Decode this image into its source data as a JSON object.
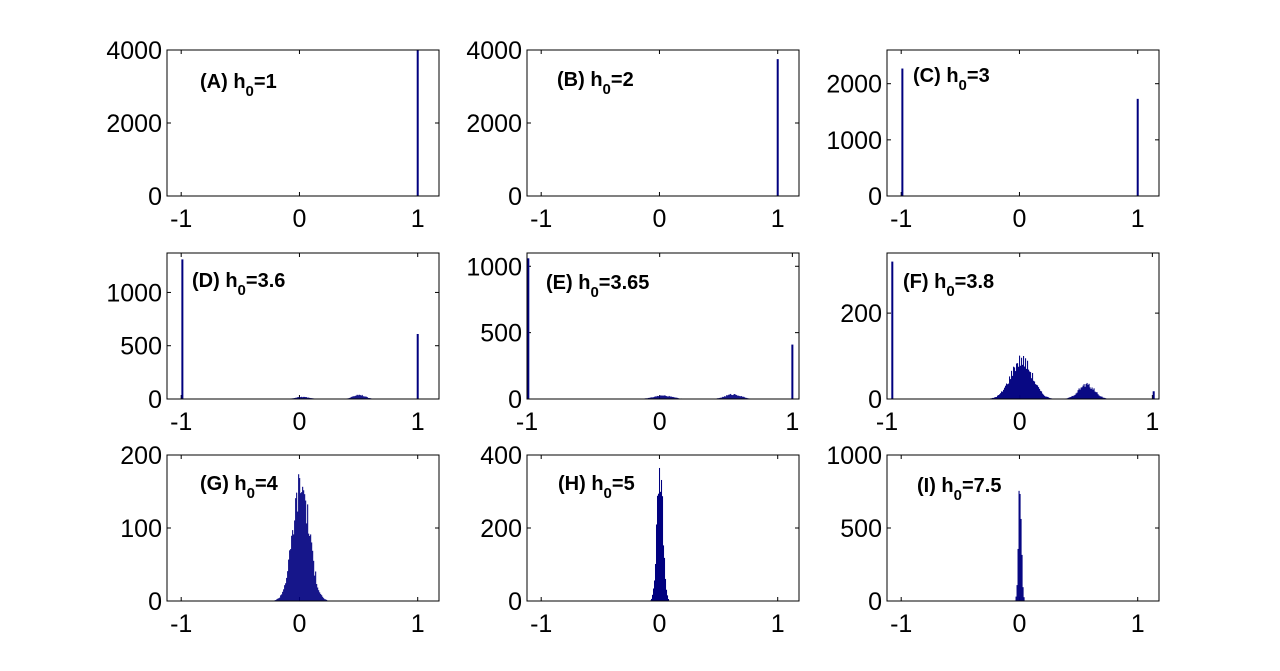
{
  "chart_data": [
    {
      "type": "bar",
      "label": "(A) h",
      "subscript": "0",
      "label_value": "=1",
      "xlim": [
        -1.12,
        1.18
      ],
      "ylim": [
        0,
        4000
      ],
      "xticks": [
        -1,
        0,
        1
      ],
      "yticks": [
        0,
        2000,
        4000
      ],
      "color": "#00007f",
      "spikes": [
        {
          "x": 1.0,
          "y": 4000
        }
      ],
      "bumps": []
    },
    {
      "type": "bar",
      "label": "(B) h",
      "subscript": "0",
      "label_value": "=2",
      "xlim": [
        -1.12,
        1.18
      ],
      "ylim": [
        0,
        4000
      ],
      "xticks": [
        -1,
        0,
        1
      ],
      "yticks": [
        0,
        2000,
        4000
      ],
      "color": "#00007f",
      "spikes": [
        {
          "x": 1.0,
          "y": 3750
        }
      ],
      "bumps": []
    },
    {
      "type": "bar",
      "label": "(C) h",
      "subscript": "0",
      "label_value": "=3",
      "xlim": [
        -1.12,
        1.18
      ],
      "ylim": [
        0,
        2600
      ],
      "xticks": [
        -1,
        0,
        1
      ],
      "yticks": [
        0,
        1000,
        2000
      ],
      "color": "#00007f",
      "spikes": [
        {
          "x": -0.99,
          "y": 2270
        },
        {
          "x": 1.0,
          "y": 1730
        }
      ],
      "bumps": []
    },
    {
      "type": "bar",
      "label": "(D) h",
      "subscript": "0",
      "label_value": "=3.6",
      "xlim": [
        -1.12,
        1.18
      ],
      "ylim": [
        0,
        1370
      ],
      "xticks": [
        -1,
        0,
        1
      ],
      "yticks": [
        0,
        500,
        1000
      ],
      "color": "#00007f",
      "spikes": [
        {
          "x": -0.99,
          "y": 1310
        },
        {
          "x": 1.0,
          "y": 610
        }
      ],
      "bumps": [
        {
          "center": 0.02,
          "width": 0.06,
          "height": 18
        },
        {
          "center": 0.5,
          "width": 0.05,
          "height": 40
        }
      ]
    },
    {
      "type": "bar",
      "label": "(E) h",
      "subscript": "0",
      "label_value": "=3.65",
      "xlim": [
        -1.0,
        1.05
      ],
      "ylim": [
        0,
        1100
      ],
      "xticks": [
        -1,
        0,
        1
      ],
      "yticks": [
        0,
        500,
        1000
      ],
      "color": "#00007f",
      "spikes": [
        {
          "x": -0.99,
          "y": 1060
        },
        {
          "x": 1.0,
          "y": 410
        }
      ],
      "bumps": [
        {
          "center": 0.02,
          "width": 0.07,
          "height": 25
        },
        {
          "center": 0.55,
          "width": 0.06,
          "height": 35
        }
      ]
    },
    {
      "type": "bar",
      "label": "(F) h",
      "subscript": "0",
      "label_value": "=3.8",
      "xlim": [
        -1.0,
        1.05
      ],
      "ylim": [
        0,
        340
      ],
      "xticks": [
        -1,
        0,
        1
      ],
      "yticks": [
        0,
        200
      ],
      "color": "#00007f",
      "spikes": [
        {
          "x": -0.96,
          "y": 320
        },
        {
          "x": 1.01,
          "y": 18
        }
      ],
      "bumps": [
        {
          "center": 0.01,
          "width": 0.08,
          "height": 90
        },
        {
          "center": 0.5,
          "width": 0.06,
          "height": 33
        }
      ]
    },
    {
      "type": "bar",
      "label": "(G) h",
      "subscript": "0",
      "label_value": "=4",
      "xlim": [
        -1.12,
        1.18
      ],
      "ylim": [
        0,
        200
      ],
      "xticks": [
        -1,
        0,
        1
      ],
      "yticks": [
        0,
        100,
        200
      ],
      "color": "#00007f",
      "spikes": [],
      "bumps": [
        {
          "center": 0.01,
          "width": 0.07,
          "height": 160
        }
      ]
    },
    {
      "type": "bar",
      "label": "(H) h",
      "subscript": "0",
      "label_value": "=5",
      "xlim": [
        -1.12,
        1.18
      ],
      "ylim": [
        0,
        400
      ],
      "xticks": [
        -1,
        0,
        1
      ],
      "yticks": [
        0,
        200,
        400
      ],
      "color": "#00007f",
      "spikes": [],
      "bumps": [
        {
          "center": 0.0,
          "width": 0.025,
          "height": 360
        }
      ]
    },
    {
      "type": "bar",
      "label": "(I) h",
      "subscript": "0",
      "label_value": "=7.5",
      "xlim": [
        -1.12,
        1.18
      ],
      "ylim": [
        0,
        1000
      ],
      "xticks": [
        -1,
        0,
        1
      ],
      "yticks": [
        0,
        500,
        1000
      ],
      "color": "#00007f",
      "spikes": [],
      "bumps": [
        {
          "center": 0.0,
          "width": 0.013,
          "height": 790
        }
      ]
    }
  ]
}
